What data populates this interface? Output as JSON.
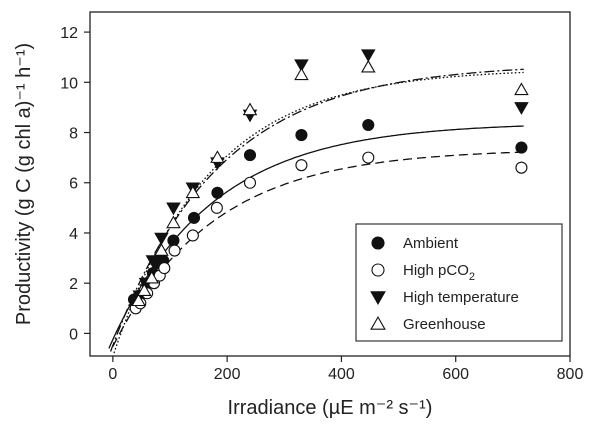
{
  "chart_data": {
    "type": "scatter",
    "xlabel": "Irradiance (µE m⁻² s⁻¹)",
    "ylabel": "Productivity (g C (g chl a)⁻¹ h⁻¹)",
    "xlim": [
      -40,
      800
    ],
    "ylim": [
      -0.9,
      12.8
    ],
    "xticks": [
      0,
      200,
      400,
      600,
      800
    ],
    "yticks": [
      0,
      2,
      4,
      6,
      8,
      10,
      12
    ],
    "grid": false,
    "legend_position": "bottom-right",
    "series": [
      {
        "name": "Ambient",
        "marker": "filled-circle",
        "curve": "solid",
        "x": [
          37,
          46,
          60,
          70,
          80,
          88,
          106,
          142,
          183,
          240,
          330,
          447,
          715
        ],
        "y": [
          1.35,
          1.5,
          2.0,
          2.4,
          2.8,
          2.9,
          3.7,
          4.6,
          5.6,
          7.1,
          7.9,
          8.3,
          7.4
        ],
        "fit": {
          "pmax": 8.4,
          "alpha": 0.048,
          "x0": 5
        }
      },
      {
        "name": "High pCO₂",
        "name_parts": {
          "base": "High pCO",
          "sub": "2"
        },
        "marker": "open-circle",
        "curve": "dashed",
        "x": [
          40,
          48,
          60,
          72,
          82,
          90,
          108,
          140,
          182,
          240,
          330,
          447,
          715
        ],
        "y": [
          1.0,
          1.2,
          1.6,
          2.0,
          2.3,
          2.6,
          3.3,
          3.9,
          5.0,
          6.0,
          6.7,
          7.0,
          6.6
        ],
        "fit": {
          "pmax": 7.35,
          "alpha": 0.042,
          "x0": 12
        }
      },
      {
        "name": "High temperature",
        "marker": "filled-triangle-down",
        "curve": "dash-dot",
        "x": [
          47,
          58,
          70,
          85,
          106,
          140,
          183,
          240,
          330,
          447,
          715
        ],
        "y": [
          1.5,
          2.0,
          2.9,
          3.8,
          5.0,
          5.8,
          6.8,
          8.7,
          10.7,
          11.1,
          9.0
        ],
        "fit": {
          "pmax": 10.75,
          "alpha": 0.058,
          "x0": 8
        }
      },
      {
        "name": "Greenhouse",
        "marker": "open-triangle-up",
        "curve": "dotted",
        "x": [
          45,
          55,
          68,
          85,
          106,
          140,
          183,
          240,
          330,
          447,
          715
        ],
        "y": [
          1.3,
          1.7,
          2.2,
          3.3,
          4.4,
          5.6,
          7.0,
          8.9,
          10.3,
          10.6,
          9.7
        ],
        "fit": {
          "pmax": 10.55,
          "alpha": 0.063,
          "x0": 14
        }
      }
    ]
  }
}
